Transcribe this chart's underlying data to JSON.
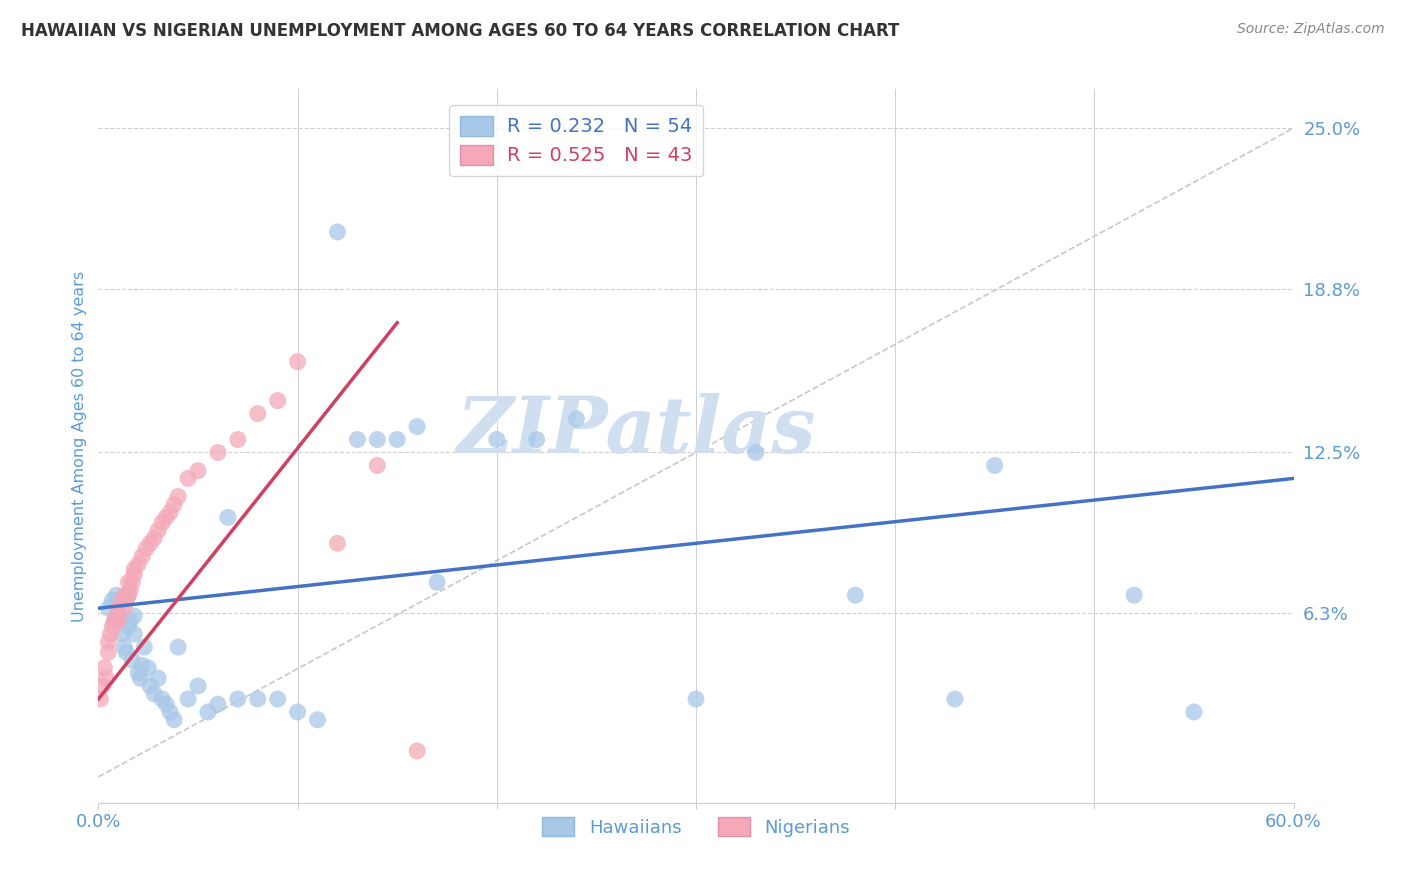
{
  "title": "HAWAIIAN VS NIGERIAN UNEMPLOYMENT AMONG AGES 60 TO 64 YEARS CORRELATION CHART",
  "source": "Source: ZipAtlas.com",
  "ylabel": "Unemployment Among Ages 60 to 64 years",
  "xlim": [
    0.0,
    0.6
  ],
  "ylim": [
    -0.01,
    0.265
  ],
  "yticks": [
    0.0,
    0.063,
    0.125,
    0.188,
    0.25
  ],
  "ytick_labels": [
    "",
    "6.3%",
    "12.5%",
    "18.8%",
    "25.0%"
  ],
  "xticks": [
    0.0,
    0.1,
    0.2,
    0.3,
    0.4,
    0.5,
    0.6
  ],
  "xtick_labels": [
    "0.0%",
    "",
    "",
    "",
    "",
    "",
    "60.0%"
  ],
  "hawaiian_R": 0.232,
  "hawaiian_N": 54,
  "nigerian_R": 0.525,
  "nigerian_N": 43,
  "hawaiian_color": "#a8c8e8",
  "nigerian_color": "#f4a8b8",
  "hawaiian_line_color": "#4472c4",
  "nigerian_line_color": "#d04060",
  "ref_line_color": "#c8c8c8",
  "background_color": "#ffffff",
  "watermark": "ZIPatlas",
  "watermark_color": "#d0dff0",
  "title_color": "#333333",
  "axis_color": "#5b9bd5",
  "hawaiian_x": [
    0.005,
    0.007,
    0.008,
    0.009,
    0.01,
    0.01,
    0.012,
    0.013,
    0.014,
    0.015,
    0.015,
    0.016,
    0.017,
    0.018,
    0.018,
    0.02,
    0.021,
    0.022,
    0.023,
    0.025,
    0.026,
    0.028,
    0.03,
    0.032,
    0.034,
    0.036,
    0.038,
    0.04,
    0.045,
    0.05,
    0.055,
    0.06,
    0.065,
    0.07,
    0.08,
    0.09,
    0.1,
    0.11,
    0.12,
    0.13,
    0.14,
    0.15,
    0.16,
    0.17,
    0.2,
    0.22,
    0.24,
    0.3,
    0.33,
    0.38,
    0.43,
    0.45,
    0.52,
    0.55
  ],
  "hawaiian_y": [
    0.065,
    0.068,
    0.06,
    0.07,
    0.068,
    0.062,
    0.055,
    0.05,
    0.048,
    0.07,
    0.058,
    0.06,
    0.045,
    0.055,
    0.062,
    0.04,
    0.038,
    0.043,
    0.05,
    0.042,
    0.035,
    0.032,
    0.038,
    0.03,
    0.028,
    0.025,
    0.022,
    0.05,
    0.03,
    0.035,
    0.025,
    0.028,
    0.1,
    0.03,
    0.03,
    0.03,
    0.025,
    0.022,
    0.21,
    0.13,
    0.13,
    0.13,
    0.135,
    0.075,
    0.13,
    0.13,
    0.138,
    0.03,
    0.125,
    0.07,
    0.03,
    0.12,
    0.07,
    0.025
  ],
  "nigerian_x": [
    0.001,
    0.002,
    0.003,
    0.004,
    0.005,
    0.005,
    0.006,
    0.007,
    0.008,
    0.009,
    0.01,
    0.01,
    0.012,
    0.013,
    0.013,
    0.014,
    0.015,
    0.015,
    0.016,
    0.017,
    0.018,
    0.018,
    0.02,
    0.022,
    0.024,
    0.026,
    0.028,
    0.03,
    0.032,
    0.034,
    0.036,
    0.038,
    0.04,
    0.045,
    0.05,
    0.06,
    0.07,
    0.08,
    0.09,
    0.1,
    0.12,
    0.14,
    0.16
  ],
  "nigerian_y": [
    0.03,
    0.035,
    0.042,
    0.038,
    0.048,
    0.052,
    0.055,
    0.058,
    0.06,
    0.062,
    0.065,
    0.06,
    0.068,
    0.065,
    0.07,
    0.068,
    0.07,
    0.075,
    0.072,
    0.075,
    0.078,
    0.08,
    0.082,
    0.085,
    0.088,
    0.09,
    0.092,
    0.095,
    0.098,
    0.1,
    0.102,
    0.105,
    0.108,
    0.115,
    0.118,
    0.125,
    0.13,
    0.14,
    0.145,
    0.16,
    0.09,
    0.12,
    0.01
  ],
  "hawaiian_trend": [
    0.0,
    0.6,
    0.065,
    0.115
  ],
  "nigerian_trend": [
    0.0,
    0.15,
    0.03,
    0.175
  ]
}
